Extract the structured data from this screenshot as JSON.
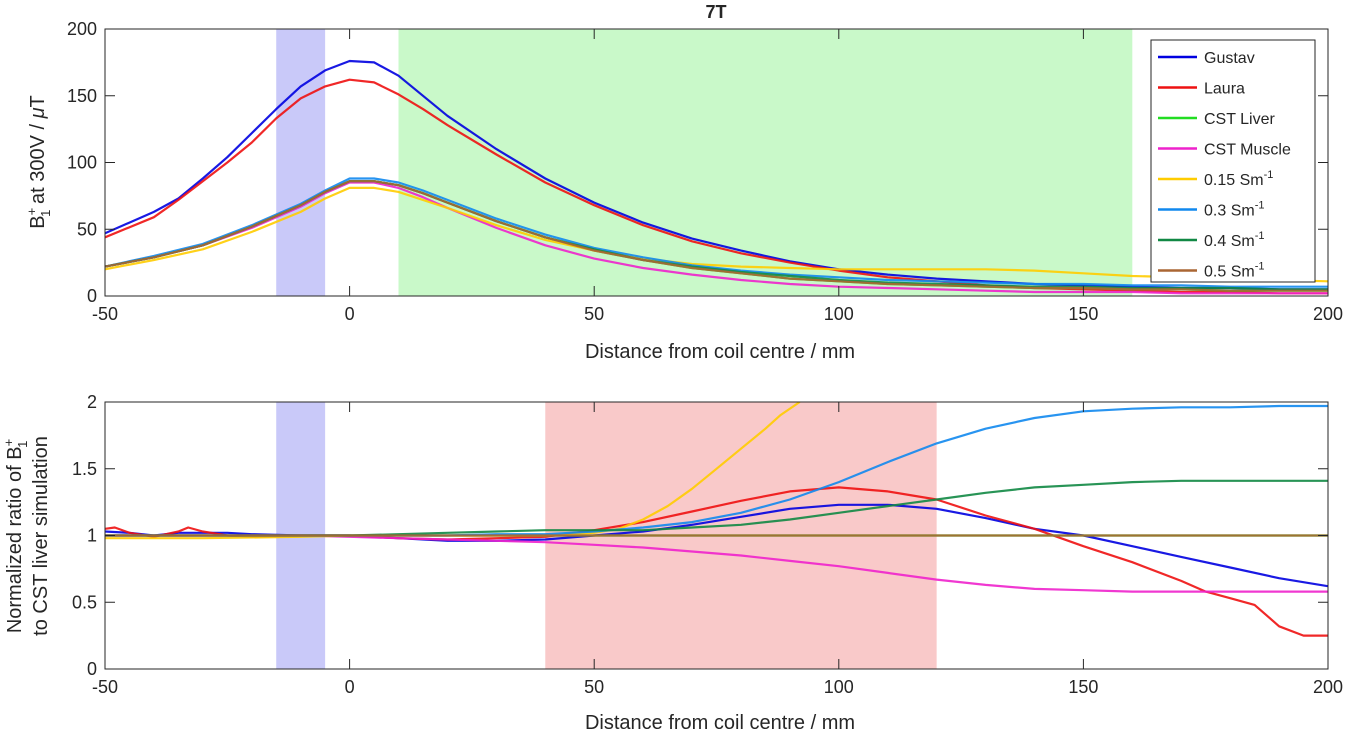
{
  "chart_data": [
    {
      "type": "line",
      "title": "7T",
      "xlabel": "Distance from coil centre / mm",
      "ylabel": "B1+ at 300V / μT",
      "ylabel_parts": {
        "main": "B",
        "sup": "+",
        "sub": "1",
        "rest": " at 300V / ",
        "mu": "μ",
        "unit": "T"
      },
      "xlim": [
        -50,
        200
      ],
      "ylim": [
        0,
        200
      ],
      "xticks": [
        -50,
        0,
        50,
        100,
        150,
        200
      ],
      "yticks": [
        0,
        50,
        100,
        150,
        200
      ],
      "grid": false,
      "legend_position": "top-right",
      "shaded_regions": [
        {
          "x": [
            -15,
            -5
          ],
          "color": "#c9c9f9"
        },
        {
          "x": [
            10,
            160
          ],
          "color": "#c9f9c9"
        }
      ],
      "series": [
        {
          "name": "Gustav",
          "legend": {
            "base": "Gustav",
            "sup": ""
          },
          "color": "#0000e0",
          "x": [
            -50,
            -40,
            -35,
            -30,
            -25,
            -20,
            -15,
            -10,
            -5,
            0,
            5,
            10,
            15,
            20,
            30,
            40,
            50,
            60,
            70,
            80,
            90,
            100,
            110,
            120,
            130,
            140,
            150,
            160,
            170,
            180,
            190,
            200
          ],
          "y": [
            47,
            63,
            73,
            88,
            104,
            122,
            140,
            157,
            169,
            176,
            175,
            165,
            150,
            135,
            110,
            88,
            70,
            55,
            43,
            34,
            26,
            20,
            16,
            13,
            11,
            9,
            8,
            7,
            6,
            6,
            5,
            5
          ]
        },
        {
          "name": "Laura",
          "legend": {
            "base": "Laura",
            "sup": ""
          },
          "color": "#ee1111",
          "x": [
            -50,
            -40,
            -35,
            -30,
            -25,
            -20,
            -15,
            -10,
            -5,
            0,
            5,
            10,
            15,
            20,
            30,
            40,
            50,
            60,
            70,
            80,
            90,
            100,
            110,
            120,
            130,
            140,
            150,
            160,
            170,
            180,
            190,
            200
          ],
          "y": [
            44,
            59,
            72,
            86,
            100,
            115,
            133,
            148,
            157,
            162,
            160,
            151,
            140,
            128,
            106,
            85,
            68,
            53,
            41,
            32,
            25,
            19,
            14,
            11,
            8,
            6,
            5,
            4,
            3,
            3,
            2,
            2
          ]
        },
        {
          "name": "CST Liver",
          "legend": {
            "base": "CST Liver",
            "sup": ""
          },
          "color": "#22dd22",
          "x": [
            -50,
            -40,
            -30,
            -20,
            -10,
            -5,
            0,
            5,
            10,
            15,
            20,
            30,
            40,
            50,
            60,
            70,
            80,
            90,
            100,
            110,
            120,
            130,
            140,
            150,
            160,
            170,
            180,
            190,
            200
          ],
          "y": [
            22,
            29,
            38,
            52,
            68,
            78,
            86,
            86,
            83,
            77,
            70,
            56,
            44,
            34,
            27,
            21,
            17,
            13,
            11,
            9,
            8,
            7,
            6,
            6,
            5,
            5,
            4,
            4,
            4
          ]
        },
        {
          "name": "CST Muscle",
          "legend": {
            "base": "CST Muscle",
            "sup": ""
          },
          "color": "#ee22cc",
          "x": [
            -50,
            -40,
            -30,
            -20,
            -10,
            -5,
            0,
            5,
            10,
            15,
            20,
            30,
            40,
            50,
            60,
            70,
            80,
            90,
            100,
            110,
            120,
            130,
            140,
            150,
            160,
            170,
            180,
            190,
            200
          ],
          "y": [
            22,
            29,
            38,
            51,
            67,
            77,
            85,
            85,
            81,
            74,
            66,
            51,
            38,
            28,
            21,
            16,
            12,
            9,
            7,
            6,
            5,
            4,
            3,
            3,
            3,
            2,
            2,
            2,
            2
          ]
        },
        {
          "name": "0.15 Sm-1",
          "legend": {
            "base": "0.15 Sm",
            "sup": "-1"
          },
          "color": "#ffcc00",
          "x": [
            -50,
            -40,
            -30,
            -20,
            -10,
            -5,
            0,
            5,
            10,
            15,
            20,
            30,
            40,
            50,
            60,
            70,
            80,
            90,
            100,
            110,
            120,
            130,
            140,
            150,
            160,
            170,
            180,
            190,
            200
          ],
          "y": [
            20,
            27,
            35,
            48,
            63,
            73,
            81,
            81,
            78,
            72,
            66,
            53,
            42,
            34,
            28,
            24,
            22,
            21,
            20,
            20,
            20,
            20,
            19,
            17,
            15,
            14,
            13,
            12,
            11
          ]
        },
        {
          "name": "0.3 Sm-1",
          "legend": {
            "base": "0.3 Sm",
            "sup": "-1"
          },
          "color": "#1188ee",
          "x": [
            -50,
            -40,
            -30,
            -20,
            -10,
            -5,
            0,
            5,
            10,
            15,
            20,
            30,
            40,
            50,
            60,
            70,
            80,
            90,
            100,
            110,
            120,
            130,
            140,
            150,
            160,
            170,
            180,
            190,
            200
          ],
          "y": [
            22,
            30,
            39,
            53,
            69,
            79,
            88,
            88,
            85,
            79,
            72,
            58,
            46,
            36,
            29,
            23,
            19,
            16,
            14,
            12,
            11,
            10,
            9,
            9,
            8,
            8,
            7,
            7,
            7
          ]
        },
        {
          "name": "0.4 Sm-1",
          "legend": {
            "base": "0.4 Sm",
            "sup": "-1"
          },
          "color": "#118844",
          "x": [
            -50,
            -40,
            -30,
            -20,
            -10,
            -5,
            0,
            5,
            10,
            15,
            20,
            30,
            40,
            50,
            60,
            70,
            80,
            90,
            100,
            110,
            120,
            130,
            140,
            150,
            160,
            170,
            180,
            190,
            200
          ],
          "y": [
            22,
            29,
            38,
            52,
            68,
            78,
            86,
            86,
            83,
            77,
            70,
            56,
            44,
            35,
            27,
            22,
            18,
            15,
            12,
            10,
            9,
            8,
            7,
            7,
            6,
            6,
            6,
            5,
            5
          ]
        },
        {
          "name": "0.5 Sm-1",
          "legend": {
            "base": "0.5 Sm",
            "sup": "-1"
          },
          "color": "#aa6633",
          "x": [
            -50,
            -40,
            -30,
            -20,
            -10,
            -5,
            0,
            5,
            10,
            15,
            20,
            30,
            40,
            50,
            60,
            70,
            80,
            90,
            100,
            110,
            120,
            130,
            140,
            150,
            160,
            170,
            180,
            190,
            200
          ],
          "y": [
            22,
            29,
            38,
            52,
            68,
            78,
            86,
            86,
            83,
            77,
            70,
            56,
            44,
            34,
            27,
            21,
            17,
            13,
            11,
            9,
            8,
            7,
            6,
            6,
            5,
            5,
            4,
            4,
            4
          ]
        }
      ]
    },
    {
      "type": "line",
      "title": "",
      "xlabel": "Distance from coil centre / mm",
      "ylabel": "Normalized ratio of B1+ to CST liver simulation",
      "ylabel_parts": {
        "line1": "Normalized ratio of B",
        "sup": "+",
        "sub": "1",
        "line2": "to CST liver simulation"
      },
      "xlim": [
        -50,
        200
      ],
      "ylim": [
        0,
        2
      ],
      "xticks": [
        -50,
        0,
        50,
        100,
        150,
        200
      ],
      "yticks": [
        0,
        0.5,
        1,
        1.5,
        2
      ],
      "ytick_labels": [
        "0",
        "0.5",
        "1",
        "1.5",
        "2"
      ],
      "grid": false,
      "shaded_regions": [
        {
          "x": [
            -15,
            -5
          ],
          "color": "#c9c9f9"
        },
        {
          "x": [
            40,
            120
          ],
          "color": "#f9c9c9"
        }
      ],
      "series": [
        {
          "name": "Gustav",
          "color": "#0000e0",
          "x": [
            -50,
            -45,
            -40,
            -35,
            -30,
            -25,
            -20,
            -10,
            0,
            10,
            20,
            30,
            40,
            50,
            60,
            70,
            80,
            90,
            100,
            110,
            120,
            130,
            140,
            150,
            160,
            170,
            180,
            190,
            200
          ],
          "y": [
            1.03,
            1.02,
            1.0,
            1.02,
            1.02,
            1.02,
            1.01,
            1.0,
            1.0,
            0.98,
            0.96,
            0.96,
            0.97,
            1.0,
            1.03,
            1.08,
            1.14,
            1.2,
            1.23,
            1.23,
            1.2,
            1.13,
            1.05,
            1.0,
            0.92,
            0.84,
            0.76,
            0.68,
            0.62
          ]
        },
        {
          "name": "Laura",
          "color": "#ee1111",
          "x": [
            -50,
            -48,
            -45,
            -40,
            -35,
            -33,
            -30,
            -25,
            -20,
            -10,
            0,
            10,
            20,
            30,
            40,
            50,
            60,
            70,
            80,
            90,
            100,
            110,
            120,
            130,
            140,
            150,
            160,
            170,
            175,
            180,
            185,
            190,
            195,
            200
          ],
          "y": [
            1.05,
            1.06,
            1.02,
            0.99,
            1.03,
            1.06,
            1.03,
            1.0,
            0.99,
            1.0,
            1.0,
            0.98,
            0.97,
            0.98,
            0.99,
            1.04,
            1.1,
            1.18,
            1.26,
            1.33,
            1.36,
            1.33,
            1.27,
            1.15,
            1.05,
            0.92,
            0.8,
            0.66,
            0.58,
            0.53,
            0.48,
            0.32,
            0.25,
            0.25
          ]
        },
        {
          "name": "CST Liver",
          "color": "#22dd22",
          "x": [
            -50,
            200
          ],
          "y": [
            1.0,
            1.0
          ]
        },
        {
          "name": "CST Muscle",
          "color": "#ee22cc",
          "x": [
            -50,
            -30,
            -10,
            0,
            10,
            20,
            30,
            40,
            50,
            60,
            70,
            80,
            90,
            100,
            110,
            120,
            130,
            140,
            150,
            160,
            170,
            180,
            190,
            200
          ],
          "y": [
            1.0,
            1.0,
            1.0,
            0.99,
            0.98,
            0.97,
            0.96,
            0.95,
            0.93,
            0.91,
            0.88,
            0.85,
            0.81,
            0.77,
            0.72,
            0.67,
            0.63,
            0.6,
            0.59,
            0.58,
            0.58,
            0.58,
            0.58,
            0.58
          ]
        },
        {
          "name": "0.15 Sm-1",
          "color": "#ffcc00",
          "x": [
            -50,
            -30,
            -10,
            0,
            10,
            20,
            30,
            40,
            50,
            55,
            60,
            65,
            70,
            75,
            80,
            85,
            88,
            92
          ],
          "y": [
            0.98,
            0.98,
            0.99,
            1.0,
            1.0,
            1.0,
            1.0,
            1.0,
            1.02,
            1.05,
            1.12,
            1.22,
            1.35,
            1.5,
            1.65,
            1.8,
            1.9,
            2.0
          ]
        },
        {
          "name": "0.3 Sm-1",
          "color": "#1188ee",
          "x": [
            -50,
            -30,
            -10,
            0,
            10,
            20,
            30,
            40,
            50,
            60,
            70,
            80,
            90,
            100,
            110,
            120,
            130,
            140,
            150,
            160,
            170,
            180,
            190,
            200
          ],
          "y": [
            1.0,
            1.0,
            1.0,
            1.0,
            1.0,
            1.0,
            1.01,
            1.01,
            1.03,
            1.06,
            1.1,
            1.17,
            1.27,
            1.4,
            1.55,
            1.69,
            1.8,
            1.88,
            1.93,
            1.95,
            1.96,
            1.96,
            1.97,
            1.97
          ]
        },
        {
          "name": "0.4 Sm-1",
          "color": "#118844",
          "x": [
            -50,
            -30,
            -10,
            0,
            10,
            20,
            30,
            40,
            50,
            60,
            70,
            80,
            90,
            100,
            110,
            120,
            130,
            140,
            150,
            160,
            170,
            180,
            190,
            200
          ],
          "y": [
            1.0,
            1.0,
            1.0,
            1.0,
            1.01,
            1.02,
            1.03,
            1.04,
            1.04,
            1.04,
            1.06,
            1.08,
            1.12,
            1.17,
            1.22,
            1.27,
            1.32,
            1.36,
            1.38,
            1.4,
            1.41,
            1.41,
            1.41,
            1.41
          ]
        },
        {
          "name": "0.5 Sm-1",
          "color": "#aa6633",
          "x": [
            -50,
            200
          ],
          "y": [
            1.0,
            1.0
          ]
        }
      ]
    }
  ]
}
